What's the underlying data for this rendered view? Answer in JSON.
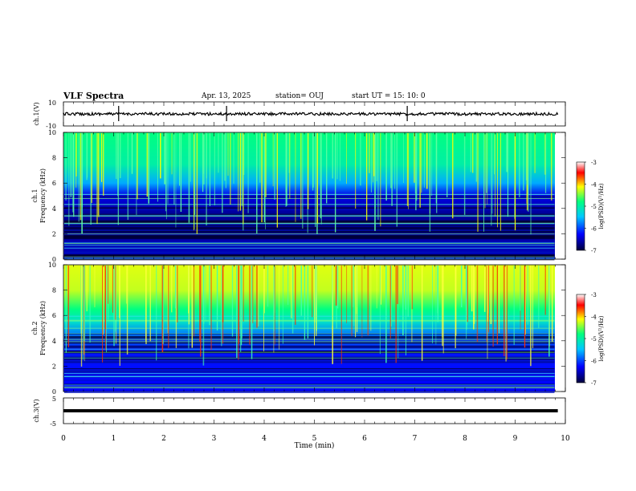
{
  "header": {
    "title": "VLF Spectra",
    "date": "Apr. 13, 2025",
    "station": "station= OUJ",
    "start": "start  UT  =   15: 10: 0"
  },
  "chart_data": [
    {
      "type": "line",
      "panel": "ch1-waveform",
      "ylabel": "ch.1(V)",
      "ylim": [
        -10,
        10
      ],
      "yticks": [
        "10",
        "-10"
      ],
      "xlim": [
        0,
        10
      ],
      "baseline_v": 0,
      "spikes_min": [
        1.1,
        3.25,
        6.85
      ]
    },
    {
      "type": "heatmap",
      "panel": "ch1-spectrogram",
      "ylabel": [
        "ch.1",
        "Frequency (kHz)"
      ],
      "ylim": [
        0,
        10
      ],
      "yticks": [
        "0",
        "2",
        "4",
        "6",
        "8",
        "10"
      ],
      "xlim": [
        0,
        9.8
      ],
      "colorbar": {
        "label": "log(PSD)(V²/Hz)",
        "range": [
          -7,
          -3
        ],
        "ticks": [
          "-3",
          "-4",
          "-5",
          "-6",
          "-7"
        ]
      }
    },
    {
      "type": "heatmap",
      "panel": "ch2-spectrogram",
      "ylabel": [
        "ch.2",
        "Frequency (kHz)"
      ],
      "ylim": [
        0,
        10
      ],
      "yticks": [
        "0",
        "2",
        "4",
        "6",
        "8",
        "10"
      ],
      "xlim": [
        0,
        9.8
      ],
      "colorbar": {
        "label": "log(PSD)(V²/Hz)",
        "range": [
          -7,
          -3
        ],
        "ticks": [
          "-3",
          "-4",
          "-5",
          "-6",
          "-7"
        ]
      }
    },
    {
      "type": "line",
      "panel": "ch3-waveform",
      "ylabel": "ch.3(V)",
      "ylim": [
        -5,
        5
      ],
      "yticks": [
        "5",
        "-5"
      ],
      "xlim": [
        0,
        10
      ],
      "baseline_v": 0
    }
  ],
  "xaxis": {
    "label": "Time  (min)",
    "ticks": [
      "0",
      "1",
      "2",
      "3",
      "4",
      "5",
      "6",
      "7",
      "8",
      "9",
      "10"
    ]
  },
  "colorscale": [
    "#000040",
    "#0000ff",
    "#00c8ff",
    "#00ff80",
    "#ffff00",
    "#ff0000",
    "#ffffff"
  ]
}
